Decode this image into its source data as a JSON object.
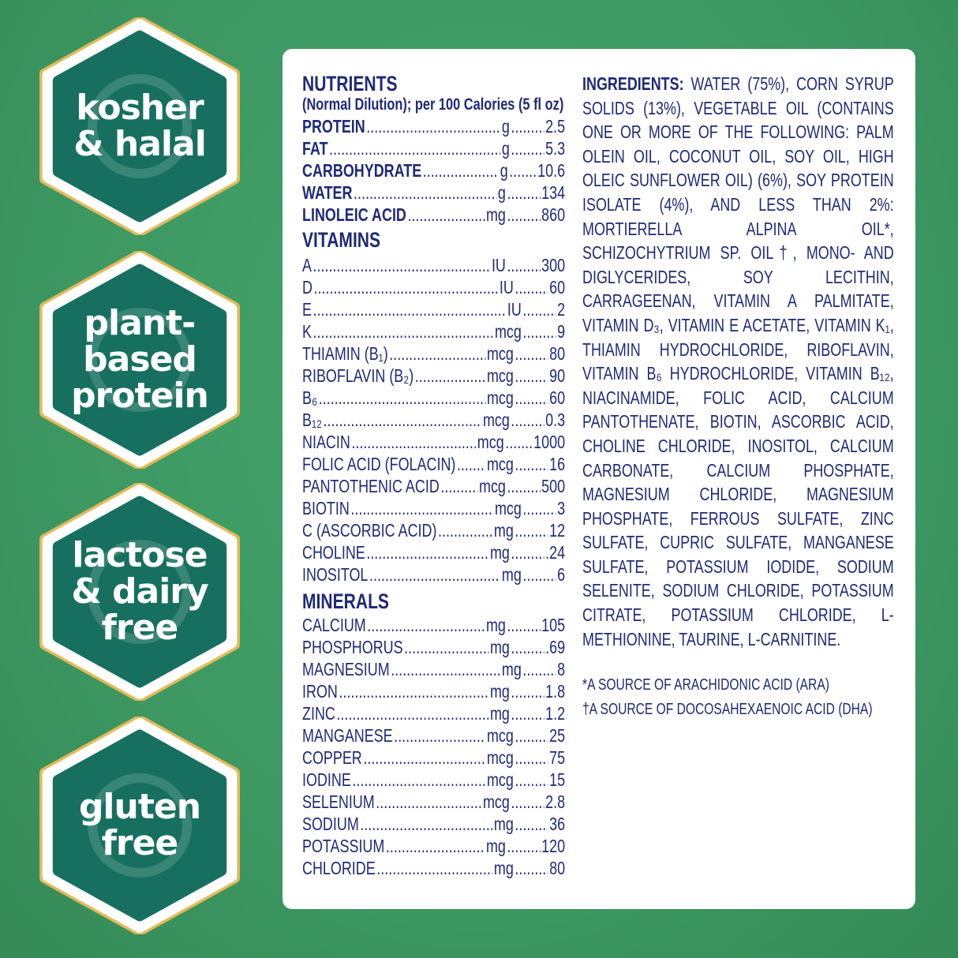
{
  "colors": {
    "background": "#3f9a63",
    "badge_fill": "#17705f",
    "badge_ring": "#ffffff",
    "badge_border": "#e2b95a",
    "text": "#1f2a78"
  },
  "badges": [
    {
      "icon": "fork-spoon-icon",
      "lines": [
        "kosher",
        "& halal"
      ]
    },
    {
      "icon": "leaf-icon",
      "lines": [
        "plant-",
        "based",
        "protein"
      ]
    },
    {
      "icon": "no-milk-icon",
      "lines": [
        "lactose",
        "& dairy",
        "free"
      ]
    },
    {
      "icon": "wheat-icon",
      "lines": [
        "gluten",
        "free"
      ]
    }
  ],
  "nutrients": {
    "title": "NUTRIENTS",
    "subtitle": "(Normal Dilution); per 100 Calories (5 fl oz)",
    "macros": [
      {
        "name": "PROTEIN",
        "unit": "g",
        "value": "2.5"
      },
      {
        "name": "FAT",
        "unit": "g",
        "value": "5.3"
      },
      {
        "name": "CARBOHYDRATE",
        "unit": "g",
        "value": "10.6"
      },
      {
        "name": "WATER",
        "unit": "g",
        "value": "134"
      },
      {
        "name": "LINOLEIC ACID",
        "unit": "mg",
        "value": "860"
      }
    ],
    "vitamins_title": "VITAMINS",
    "vitamins": [
      {
        "name": "A",
        "unit": "IU",
        "value": "300"
      },
      {
        "name": "D",
        "unit": "IU",
        "value": "60"
      },
      {
        "name": "E",
        "unit": "IU",
        "value": "2"
      },
      {
        "name": "K",
        "unit": "mcg",
        "value": "9"
      },
      {
        "name": "THIAMIN (B₁)",
        "unit": "mcg",
        "value": "80"
      },
      {
        "name": "RIBOFLAVIN (B₂)",
        "unit": "mcg",
        "value": "90"
      },
      {
        "name": "B₆",
        "unit": "mcg",
        "value": "60"
      },
      {
        "name": "B₁₂",
        "unit": "mcg",
        "value": "0.3"
      },
      {
        "name": "NIACIN",
        "unit": "mcg",
        "value": "1000"
      },
      {
        "name": "FOLIC ACID (FOLACIN)",
        "unit": "mcg",
        "value": "16"
      },
      {
        "name": "PANTOTHENIC ACID",
        "unit": "mcg",
        "value": "500"
      },
      {
        "name": "BIOTIN",
        "unit": "mcg",
        "value": "3"
      },
      {
        "name": "C (ASCORBIC ACID)",
        "unit": "mg",
        "value": "12"
      },
      {
        "name": "CHOLINE",
        "unit": "mg",
        "value": ".24"
      },
      {
        "name": "INOSITOL",
        "unit": "mg",
        "value": "6"
      }
    ],
    "minerals_title": "MINERALS",
    "minerals": [
      {
        "name": "CALCIUM",
        "unit": "mg",
        "value": "105"
      },
      {
        "name": "PHOSPHORUS",
        "unit": "mg",
        "value": ".69"
      },
      {
        "name": "MAGNESIUM",
        "unit": "mg",
        "value": "8"
      },
      {
        "name": "IRON",
        "unit": "mg",
        "value": "1.8"
      },
      {
        "name": "ZINC",
        "unit": "mg",
        "value": "1.2"
      },
      {
        "name": "MANGANESE",
        "unit": "mcg",
        "value": "25"
      },
      {
        "name": "COPPER",
        "unit": "mcg",
        "value": "75"
      },
      {
        "name": "IODINE",
        "unit": "mcg",
        "value": "15"
      },
      {
        "name": "SELENIUM",
        "unit": "mcg",
        "value": "2.8"
      },
      {
        "name": "SODIUM",
        "unit": "mg",
        "value": "36"
      },
      {
        "name": "POTASSIUM",
        "unit": "mg",
        "value": "120"
      },
      {
        "name": "CHLORIDE",
        "unit": "mg",
        "value": "80"
      }
    ]
  },
  "ingredients": {
    "label": "INGREDIENTS:",
    "text": "WATER (75%), CORN SYRUP SOLIDS (13%), VEGETABLE OIL (CONTAINS ONE OR MORE OF THE FOLLOWING: PALM OLEIN OIL, COCONUT OIL, SOY OIL, HIGH OLEIC SUNFLOWER OIL) (6%), SOY PROTEIN ISOLATE (4%), AND LESS THAN 2%: MORTIERELLA ALPINA OIL*, SCHIZOCHYTRIUM SP. OIL†, MONO- AND DIGLYCERIDES, SOY LECITHIN, CARRAGEENAN, VITAMIN A PALMITATE, VITAMIN D₃, VITAMIN E ACETATE, VITAMIN K₁, THIAMIN HYDROCHLORIDE, RIBOFLAVIN, VITAMIN B₆ HYDROCHLORIDE, VITAMIN B₁₂, NIACINAMIDE, FOLIC ACID, CALCIUM PANTOTHENATE, BIOTIN, ASCORBIC ACID, CHOLINE CHLORIDE, INOSITOL, CALCIUM CARBONATE, CALCIUM PHOSPHATE, MAGNESIUM CHLORIDE, MAGNESIUM PHOSPHATE, FERROUS SULFATE, ZINC SULFATE, CUPRIC SULFATE, MANGANESE SULFATE, POTASSIUM IODIDE, SODIUM SELENITE, SODIUM CHLORIDE, POTASSIUM CITRATE, POTASSIUM CHLORIDE, L-METHIONINE, TAURINE, L-CARNITINE.",
    "footnotes": [
      "*A SOURCE OF ARACHIDONIC ACID (ARA)",
      "†A SOURCE OF DOCOSAHEXAENOIC ACID (DHA)"
    ]
  }
}
